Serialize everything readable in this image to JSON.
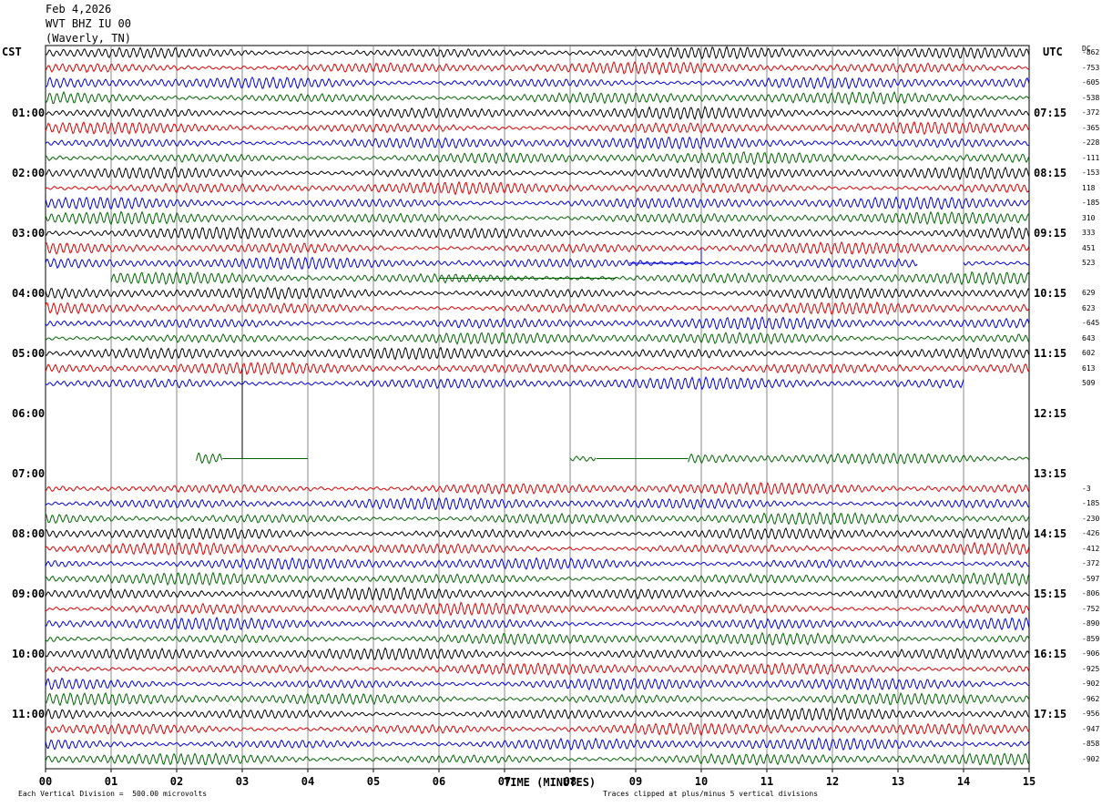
{
  "header": {
    "date": "Feb 4,2026",
    "station": "WVT BHZ IU 00",
    "location": "(Waverly, TN)"
  },
  "axes": {
    "left_tag": "CST",
    "right_tag": "UTC",
    "dc_tag": "DC",
    "xlabel": "TIME (MINUTES)",
    "x_ticks": [
      "00",
      "01",
      "02",
      "03",
      "04",
      "05",
      "06",
      "07",
      "08",
      "09",
      "10",
      "11",
      "12",
      "13",
      "14",
      "15"
    ]
  },
  "footer": {
    "scale_note": "Each Vertical Division =  500.00 microvolts",
    "clip_note": "Traces clipped at plus/minus 5 vertical divisions"
  },
  "chart_data": {
    "type": "line",
    "title": "",
    "x_minutes_range": [
      0,
      15
    ],
    "rows_per_hour": 4,
    "row_colors": [
      "#000000",
      "#dd0000",
      "#0000dd",
      "#006600"
    ],
    "cst_labels": [
      {
        "row": 4,
        "text": "01:00"
      },
      {
        "row": 8,
        "text": "02:00"
      },
      {
        "row": 12,
        "text": "03:00"
      },
      {
        "row": 16,
        "text": "04:00"
      },
      {
        "row": 20,
        "text": "05:00"
      },
      {
        "row": 24,
        "text": "06:00"
      },
      {
        "row": 28,
        "text": "07:00"
      },
      {
        "row": 32,
        "text": "08:00"
      },
      {
        "row": 36,
        "text": "09:00"
      },
      {
        "row": 40,
        "text": "10:00"
      },
      {
        "row": 44,
        "text": "11:00"
      }
    ],
    "utc_labels": [
      {
        "row": 4,
        "text": "07:15"
      },
      {
        "row": 8,
        "text": "08:15"
      },
      {
        "row": 12,
        "text": "09:15"
      },
      {
        "row": 16,
        "text": "10:15"
      },
      {
        "row": 20,
        "text": "11:15"
      },
      {
        "row": 24,
        "text": "12:15"
      },
      {
        "row": 28,
        "text": "13:15"
      },
      {
        "row": 32,
        "text": "14:15"
      },
      {
        "row": 36,
        "text": "15:15"
      },
      {
        "row": 40,
        "text": "16:15"
      },
      {
        "row": 44,
        "text": "17:15"
      }
    ],
    "dc_offsets": [
      "-862",
      "-753",
      "-605",
      "-538",
      "-372",
      "-365",
      "-228",
      "-111",
      "-153",
      "118",
      "-185",
      "310",
      "333",
      "451",
      "523",
      "",
      "629",
      "623",
      "-645",
      "643",
      "602",
      "613",
      "509",
      "",
      "",
      "",
      "",
      "",
      "",
      "-3",
      "-185",
      "-230",
      "-426",
      "-412",
      "-372",
      "-597",
      "-806",
      "-752",
      "-890",
      "-859",
      "-906",
      "-925",
      "-902",
      "-962",
      "-956",
      "-947",
      "-858",
      "-902"
    ],
    "row_segments": [
      [
        [
          0,
          15
        ]
      ],
      [
        [
          0,
          15
        ]
      ],
      [
        [
          0,
          15
        ]
      ],
      [
        [
          0,
          15
        ]
      ],
      [
        [
          0,
          15
        ]
      ],
      [
        [
          0,
          15
        ]
      ],
      [
        [
          0,
          15
        ]
      ],
      [
        [
          0,
          15
        ]
      ],
      [
        [
          0,
          15
        ]
      ],
      [
        [
          0,
          15
        ]
      ],
      [
        [
          0,
          15
        ]
      ],
      [
        [
          0,
          15
        ]
      ],
      [
        [
          0,
          15
        ]
      ],
      [
        [
          0,
          15
        ]
      ],
      [
        [
          0,
          13.3
        ],
        [
          14.0,
          15
        ]
      ],
      [
        [
          1.0,
          15
        ]
      ],
      [
        [
          0,
          15
        ]
      ],
      [
        [
          0,
          15
        ]
      ],
      [
        [
          0,
          15
        ]
      ],
      [
        [
          0,
          15
        ]
      ],
      [
        [
          0,
          15
        ]
      ],
      [
        [
          0,
          15
        ]
      ],
      [
        [
          0,
          14.0
        ]
      ],
      [],
      [],
      [],
      [],
      [
        [
          2.3,
          2.7
        ],
        [
          8.0,
          8.4
        ],
        [
          9.8,
          15
        ]
      ],
      [],
      [
        [
          0,
          15
        ]
      ],
      [
        [
          0,
          15
        ]
      ],
      [
        [
          0,
          15
        ]
      ],
      [
        [
          0,
          15
        ]
      ],
      [
        [
          0,
          15
        ]
      ],
      [
        [
          0,
          15
        ]
      ],
      [
        [
          0,
          15
        ]
      ],
      [
        [
          0,
          15
        ]
      ],
      [
        [
          0,
          15
        ]
      ],
      [
        [
          0,
          15
        ]
      ],
      [
        [
          0,
          15
        ]
      ],
      [
        [
          0,
          15
        ]
      ],
      [
        [
          0,
          15
        ]
      ],
      [
        [
          0,
          15
        ]
      ],
      [
        [
          0,
          15
        ]
      ],
      [
        [
          0,
          15
        ]
      ],
      [
        [
          0,
          15
        ]
      ],
      [
        [
          0,
          15
        ]
      ],
      [
        [
          0,
          15
        ]
      ]
    ],
    "flat_segments": [
      {
        "row": 14,
        "from": 8.9,
        "to": 10.0
      },
      {
        "row": 15,
        "from": 6.0,
        "to": 8.7
      },
      {
        "row": 27,
        "from": 2.7,
        "to": 4.0
      },
      {
        "row": 27,
        "from": 8.4,
        "to": 9.8
      }
    ],
    "vertical_events": [
      {
        "minute": 3.0,
        "from_row": 21,
        "to_row": 27
      },
      {
        "minute": 10.0,
        "from_row": 13,
        "to_row": 14
      }
    ]
  }
}
